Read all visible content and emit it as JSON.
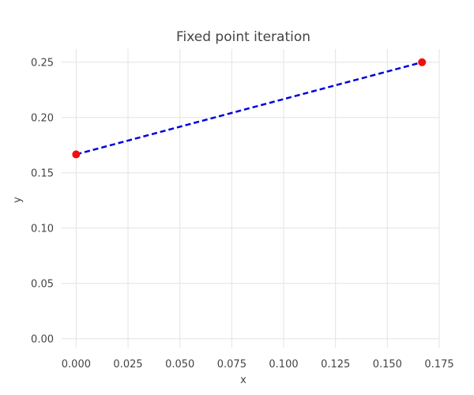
{
  "chart_data": {
    "type": "line",
    "title": "Fixed point iteration",
    "xlabel": "x",
    "ylabel": "y",
    "xlim": [
      -0.007,
      0.175
    ],
    "ylim": [
      -0.008,
      0.262
    ],
    "x_ticks": [
      0.0,
      0.025,
      0.05,
      0.075,
      0.1,
      0.125,
      0.15,
      0.175
    ],
    "x_tick_labels": [
      "0.000",
      "0.025",
      "0.050",
      "0.075",
      "0.100",
      "0.125",
      "0.150",
      "0.175"
    ],
    "y_ticks": [
      0.0,
      0.05,
      0.1,
      0.15,
      0.2,
      0.25
    ],
    "y_tick_labels": [
      "0.00",
      "0.05",
      "0.10",
      "0.15",
      "0.20",
      "0.25"
    ],
    "grid": true,
    "series": [
      {
        "style": "dashed",
        "color": "#0000dd",
        "marker_color": "#ee1111",
        "x": [
          0.0,
          0.1667
        ],
        "y": [
          0.1667,
          0.25
        ]
      }
    ]
  }
}
